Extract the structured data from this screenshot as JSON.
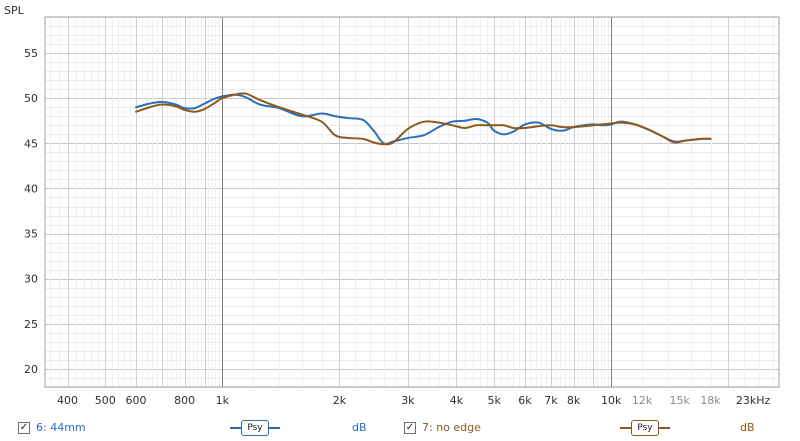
{
  "chart_data": {
    "type": "line",
    "ylabel": "SPL",
    "xunit_label": "kHz",
    "x_scale": "log",
    "xlim": [
      350,
      27000
    ],
    "ylim": [
      18,
      59
    ],
    "grid": true,
    "x_tick_labels": [
      {
        "value": 400,
        "label": "400",
        "minor": false
      },
      {
        "value": 500,
        "label": "500",
        "minor": false
      },
      {
        "value": 600,
        "label": "600",
        "minor": false
      },
      {
        "value": 800,
        "label": "800",
        "minor": false
      },
      {
        "value": 1000,
        "label": "1k",
        "minor": false
      },
      {
        "value": 2000,
        "label": "2k",
        "minor": false
      },
      {
        "value": 3000,
        "label": "3k",
        "minor": false
      },
      {
        "value": 4000,
        "label": "4k",
        "minor": false
      },
      {
        "value": 5000,
        "label": "5k",
        "minor": false
      },
      {
        "value": 6000,
        "label": "6k",
        "minor": false
      },
      {
        "value": 7000,
        "label": "7k",
        "minor": false
      },
      {
        "value": 8000,
        "label": "8k",
        "minor": false
      },
      {
        "value": 10000,
        "label": "10k",
        "minor": false
      },
      {
        "value": 12000,
        "label": "12k",
        "minor": true
      },
      {
        "value": 15000,
        "label": "15k",
        "minor": true
      },
      {
        "value": 18000,
        "label": "18k",
        "minor": true
      },
      {
        "value": 23000,
        "label": "23kHz",
        "minor": false
      }
    ],
    "y_ticks": [
      20,
      25,
      30,
      35,
      40,
      45,
      50,
      55
    ],
    "series": [
      {
        "name": "6: 44mm",
        "color": "#2a6fb8",
        "x": [
          600,
          650,
          700,
          760,
          800,
          850,
          900,
          950,
          1000,
          1080,
          1150,
          1250,
          1400,
          1600,
          1800,
          1950,
          2100,
          2300,
          2450,
          2600,
          2750,
          3000,
          3300,
          3600,
          3900,
          4200,
          4500,
          4800,
          5000,
          5300,
          5600,
          6000,
          6500,
          7000,
          7500,
          8000,
          8500,
          9000,
          9500,
          10000,
          10600,
          11500,
          12500,
          13500,
          14500,
          15500,
          17000,
          18000
        ],
        "y": [
          49.0,
          49.4,
          49.6,
          49.3,
          48.9,
          48.9,
          49.4,
          49.9,
          50.2,
          50.4,
          50.1,
          49.3,
          48.9,
          48.0,
          48.3,
          48.0,
          47.8,
          47.6,
          46.4,
          45.0,
          45.2,
          45.6,
          45.9,
          46.8,
          47.4,
          47.5,
          47.7,
          47.3,
          46.4,
          46.0,
          46.3,
          47.1,
          47.3,
          46.6,
          46.4,
          46.8,
          47.0,
          47.1,
          47.0,
          47.1,
          47.4,
          47.1,
          46.5,
          45.8,
          45.1,
          45.3,
          45.5,
          45.5
        ]
      },
      {
        "name": "7: no edge",
        "color": "#8c5a1e",
        "x": [
          600,
          650,
          700,
          760,
          800,
          850,
          900,
          950,
          1000,
          1080,
          1150,
          1250,
          1400,
          1600,
          1800,
          1950,
          2100,
          2300,
          2450,
          2600,
          2750,
          3000,
          3300,
          3600,
          3900,
          4200,
          4500,
          4800,
          5000,
          5300,
          5600,
          6000,
          6500,
          7000,
          7500,
          8000,
          8500,
          9000,
          9500,
          10000,
          10600,
          11500,
          12500,
          13500,
          14500,
          15500,
          17000,
          18000
        ],
        "y": [
          48.5,
          49.0,
          49.3,
          49.1,
          48.7,
          48.5,
          48.8,
          49.4,
          50.0,
          50.4,
          50.5,
          49.8,
          49.0,
          48.2,
          47.4,
          45.9,
          45.6,
          45.5,
          45.1,
          44.9,
          45.1,
          46.6,
          47.4,
          47.3,
          47.0,
          46.7,
          47.0,
          47.0,
          47.0,
          47.0,
          46.7,
          46.7,
          46.9,
          47.0,
          46.8,
          46.8,
          46.9,
          47.0,
          47.1,
          47.2,
          47.3,
          47.1,
          46.5,
          45.8,
          45.2,
          45.3,
          45.5,
          45.5
        ]
      }
    ]
  },
  "legend": {
    "items": [
      {
        "label": "6: 44mm",
        "checked": "✓",
        "psy_label": "Psy",
        "unit": "dB",
        "color": "#2a6fb8"
      },
      {
        "label": "7: no edge",
        "checked": "✓",
        "psy_label": "Psy",
        "unit": "dB",
        "color": "#8c5a1e"
      }
    ]
  }
}
